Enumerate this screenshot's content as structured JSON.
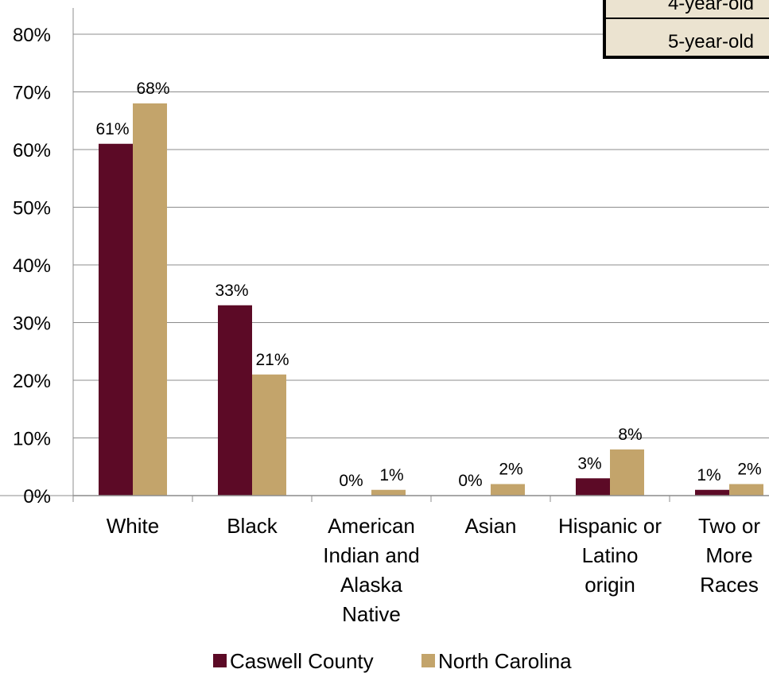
{
  "chart_data": {
    "type": "bar",
    "title": "",
    "xlabel": "",
    "ylabel": "",
    "ylim": [
      0,
      80
    ],
    "yticks": [
      "0%",
      "10%",
      "20%",
      "30%",
      "40%",
      "50%",
      "60%",
      "70%",
      "80%"
    ],
    "grid": true,
    "legend_position": "bottom",
    "categories": [
      [
        "White"
      ],
      [
        "Black"
      ],
      [
        "American",
        "Indian and",
        "Alaska",
        "Native"
      ],
      [
        "Asian"
      ],
      [
        "Hispanic or",
        "Latino",
        "origin"
      ],
      [
        "Two or",
        "More",
        "Races"
      ]
    ],
    "series": [
      {
        "name": "Caswell County",
        "color": "#5c0a26",
        "values": [
          61,
          33,
          0,
          0,
          3,
          1
        ],
        "labels": [
          "61%",
          "33%",
          "0%",
          "0%",
          "3%",
          "1%"
        ]
      },
      {
        "name": "North Carolina",
        "color": "#c3a46b",
        "values": [
          68,
          21,
          1,
          2,
          8,
          2
        ],
        "labels": [
          "68%",
          "21%",
          "1%",
          "2%",
          "8%",
          "2%"
        ]
      }
    ]
  },
  "inset_table": {
    "rows": [
      "4-year-old",
      "5-year-old"
    ]
  }
}
